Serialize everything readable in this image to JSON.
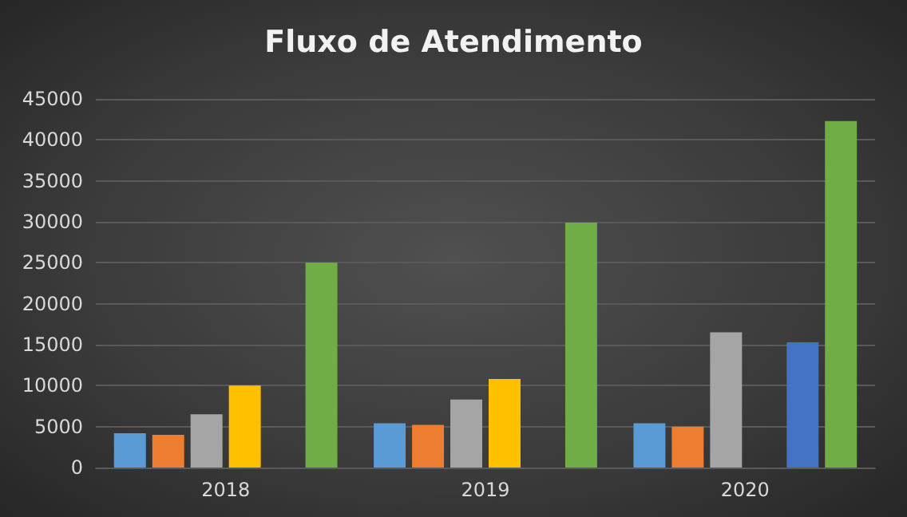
{
  "chart_data": {
    "type": "bar",
    "title": "Fluxo de Atendimento",
    "categories": [
      "2018",
      "2019",
      "2020"
    ],
    "series": [
      {
        "color": "#5b9bd5",
        "values": [
          4200,
          5400,
          5400
        ]
      },
      {
        "color": "#ed7d31",
        "values": [
          4000,
          5200,
          5000
        ]
      },
      {
        "color": "#a5a5a5",
        "values": [
          6500,
          8300,
          16500
        ]
      },
      {
        "color": "#ffc000",
        "values": [
          10000,
          10800,
          null
        ]
      },
      {
        "color": "#4472c4",
        "values": [
          null,
          null,
          15300
        ]
      },
      {
        "color": "#70ad47",
        "values": [
          25000,
          29900,
          42300
        ]
      }
    ],
    "ylim": [
      0,
      45000
    ],
    "yticks": [
      0,
      5000,
      10000,
      15000,
      20000,
      25000,
      30000,
      35000,
      40000,
      45000
    ],
    "grid": "y"
  }
}
